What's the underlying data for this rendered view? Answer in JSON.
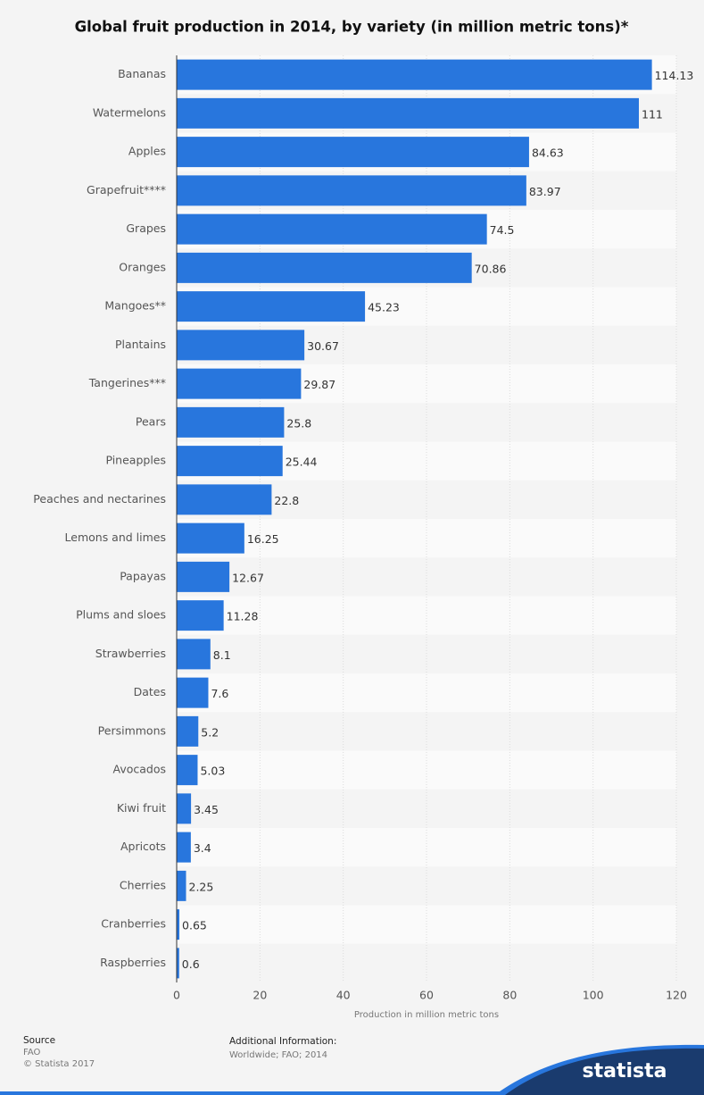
{
  "chart_data": {
    "type": "bar",
    "orientation": "horizontal",
    "title": "Global fruit production in 2014, by variety (in million metric tons)*",
    "categories": [
      "Bananas",
      "Watermelons",
      "Apples",
      "Grapefruit****",
      "Grapes",
      "Oranges",
      "Mangoes**",
      "Plantains",
      "Tangerines***",
      "Pears",
      "Pineapples",
      "Peaches and nectarines",
      "Lemons and limes",
      "Papayas",
      "Plums and sloes",
      "Strawberries",
      "Dates",
      "Persimmons",
      "Avocados",
      "Kiwi fruit",
      "Apricots",
      "Cherries",
      "Cranberries",
      "Raspberries"
    ],
    "values": [
      114.13,
      111,
      84.63,
      83.97,
      74.5,
      70.86,
      45.23,
      30.67,
      29.87,
      25.8,
      25.44,
      22.8,
      16.25,
      12.67,
      11.28,
      8.1,
      7.6,
      5.2,
      5.03,
      3.45,
      3.4,
      2.25,
      0.65,
      0.6
    ],
    "color": "#2876dd",
    "xlim": [
      0,
      120
    ],
    "xticks": [
      0,
      20,
      40,
      60,
      80,
      100,
      120
    ],
    "xlabel": "Production in million metric tons",
    "grid": true
  },
  "footer": {
    "source_title": "Source",
    "source": "FAO",
    "copyright": "© Statista 2017",
    "info_title": "Additional Information:",
    "info": "Worldwide; FAO; 2014",
    "logo": "statista"
  }
}
